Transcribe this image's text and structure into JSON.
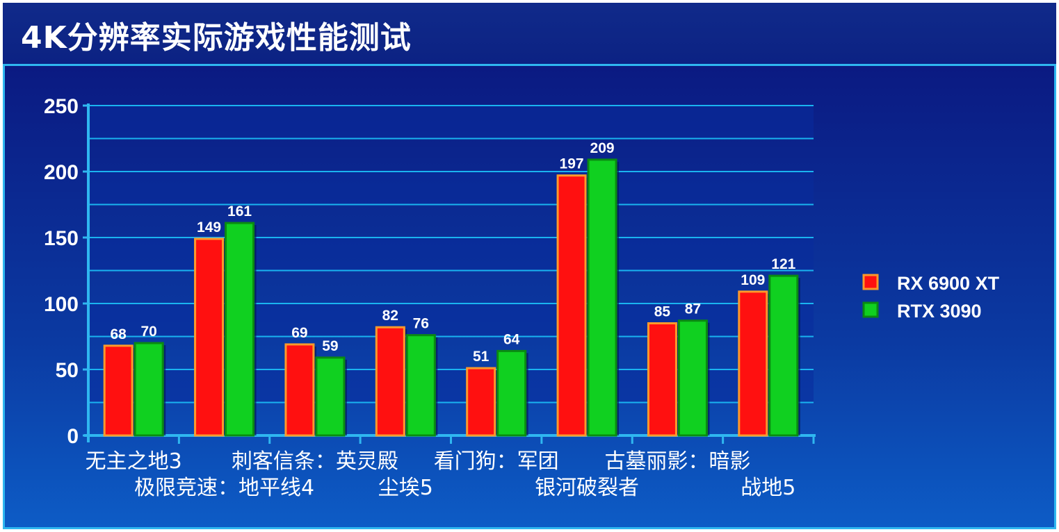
{
  "title": "4K分辨率实际游戏性能测试",
  "colors": {
    "series_a": "#ff1010",
    "series_a_border": "#ff9a2a",
    "series_b": "#10d020",
    "series_b_border": "#0a8a12",
    "grid": "#1ab4f0",
    "axis": "#2fb7f0"
  },
  "chart_data": {
    "type": "bar",
    "title": "4K分辨率实际游戏性能测试",
    "categories": [
      "无主之地3",
      "极限竞速：地平线4",
      "刺客信条：英灵殿",
      "尘埃5",
      "看门狗：军团",
      "银河破裂者",
      "古墓丽影：暗影",
      "战地5"
    ],
    "category_label_rows": [
      "top",
      "bottom",
      "top",
      "bottom",
      "top",
      "bottom",
      "top",
      "bottom"
    ],
    "series": [
      {
        "name": "RX 6900 XT",
        "values": [
          68,
          149,
          69,
          82,
          51,
          197,
          85,
          109
        ]
      },
      {
        "name": "RTX 3090",
        "values": [
          70,
          161,
          59,
          76,
          64,
          209,
          87,
          121
        ]
      }
    ],
    "ylim": [
      0,
      250
    ],
    "yticks": [
      0,
      50,
      100,
      150,
      200,
      250
    ],
    "grid": true,
    "legend_position": "right",
    "data_labels": true
  }
}
